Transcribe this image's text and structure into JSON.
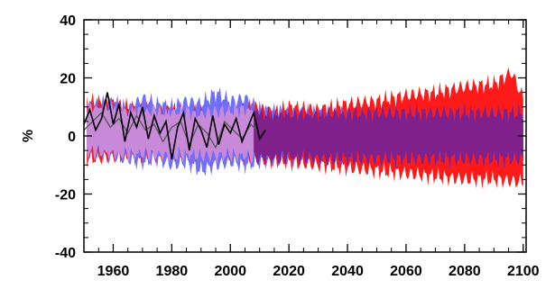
{
  "chart_data": {
    "type": "area",
    "title": "",
    "xlabel": "",
    "ylabel": "%",
    "xlim": [
      1950,
      2101
    ],
    "ylim": [
      -40,
      40
    ],
    "x_ticks": [
      1960,
      1980,
      2000,
      2020,
      2040,
      2060,
      2080,
      2100
    ],
    "y_ticks": [
      40,
      20,
      0,
      -20,
      -40
    ],
    "grid": false,
    "colors": {
      "red_band": "#ff1a1a",
      "blue_band": "#5555ff",
      "overlap_band": "#80208a",
      "hist_overlap": "#c88ad8",
      "observations": "#000000"
    },
    "series": [
      {
        "role": "upper envelope (red)",
        "x": [
          1951,
          1960,
          1970,
          1980,
          1990,
          2000,
          2008,
          2015,
          2020,
          2030,
          2040,
          2050,
          2060,
          2070,
          2080,
          2090,
          2096,
          2100
        ],
        "values": [
          12,
          11,
          9,
          9,
          8,
          9,
          10,
          8,
          10,
          9,
          11,
          12,
          14,
          15,
          17,
          18,
          22,
          13
        ]
      },
      {
        "role": "lower envelope (red)",
        "x": [
          1951,
          1960,
          1970,
          1980,
          1990,
          2000,
          2008,
          2020,
          2030,
          2040,
          2050,
          2060,
          2070,
          2080,
          2090,
          2100
        ],
        "values": [
          -8,
          -7,
          -7,
          -7,
          -7,
          -7,
          -8,
          -9,
          -10,
          -11,
          -12,
          -13,
          -14,
          -15,
          -15,
          -16
        ]
      },
      {
        "role": "upper envelope (blue)",
        "x": [
          1951,
          1960,
          1965,
          1970,
          1975,
          1980,
          1985,
          1990,
          1995,
          2000,
          2005,
          2010,
          2020,
          2040,
          2060,
          2080,
          2100
        ],
        "values": [
          10,
          12,
          9,
          13,
          11,
          10,
          12,
          11,
          15,
          12,
          13,
          9,
          8,
          8,
          8,
          8,
          8
        ]
      },
      {
        "role": "lower envelope (blue)",
        "x": [
          1951,
          1960,
          1965,
          1970,
          1975,
          1980,
          1985,
          1990,
          1995,
          2000,
          2005,
          2010,
          2020,
          2040,
          2060,
          2080,
          2100
        ],
        "values": [
          -6,
          -7,
          -8,
          -9,
          -8,
          -10,
          -9,
          -12,
          -10,
          -9,
          -10,
          -9,
          -8,
          -8,
          -8,
          -8,
          -8
        ]
      },
      {
        "role": "observations (black)",
        "x": [
          1950,
          1952,
          1954,
          1956,
          1958,
          1960,
          1962,
          1964,
          1966,
          1968,
          1970,
          1972,
          1974,
          1976,
          1978,
          1980,
          1982,
          1984,
          1986,
          1988,
          1990,
          1992,
          1994,
          1996,
          1998,
          2000,
          2002,
          2004,
          2006,
          2008,
          2010,
          2012
        ],
        "values": [
          4,
          9,
          2,
          6,
          15,
          4,
          11,
          -2,
          8,
          3,
          10,
          -1,
          7,
          1,
          5,
          -8,
          3,
          8,
          -5,
          6,
          2,
          -4,
          7,
          -3,
          4,
          1,
          6,
          -2,
          3,
          8,
          -1,
          2
        ]
      },
      {
        "role": "observations (grey)",
        "x": [
          1950,
          1953,
          1956,
          1959,
          1962,
          1965,
          1968,
          1971,
          1974,
          1977,
          1980,
          1983,
          1986,
          1989,
          1992,
          1995,
          1998,
          2001,
          2004,
          2007,
          2010
        ],
        "values": [
          2,
          5,
          8,
          3,
          6,
          1,
          7,
          2,
          4,
          -2,
          3,
          5,
          -3,
          4,
          1,
          -4,
          5,
          2,
          -1,
          4,
          1
        ]
      }
    ]
  }
}
